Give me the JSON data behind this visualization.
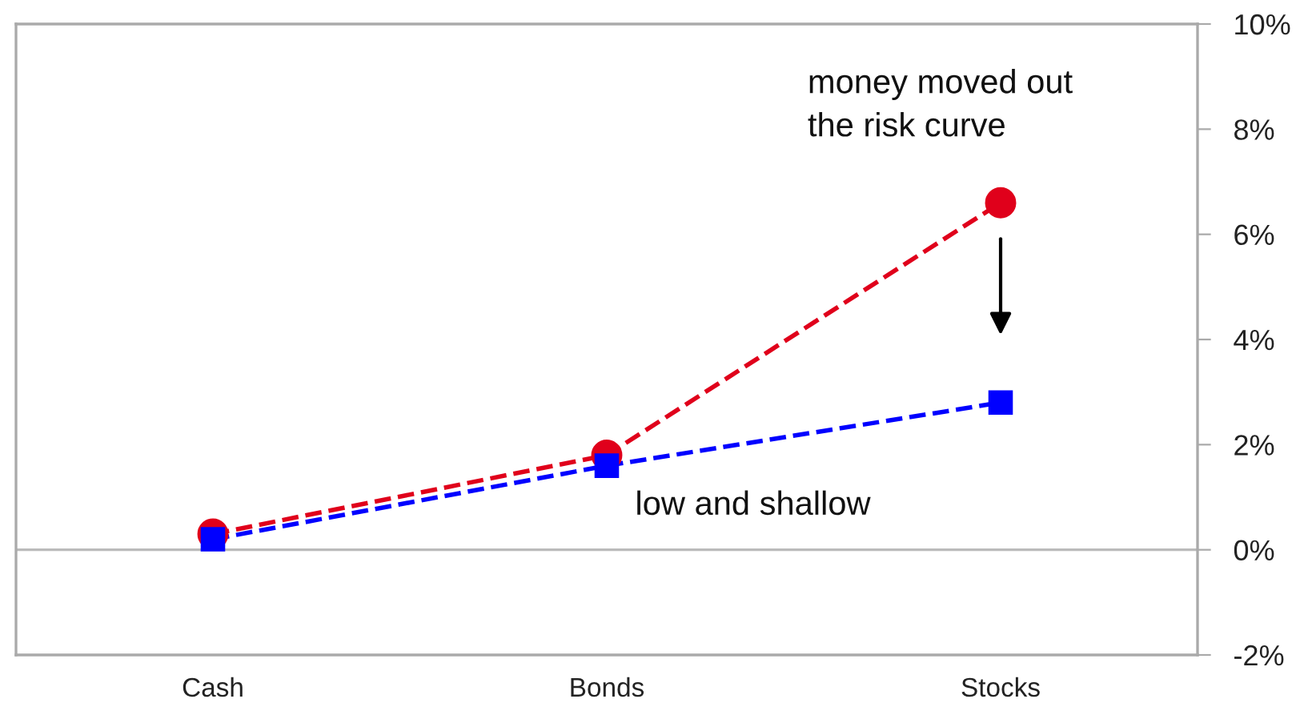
{
  "chart_data": {
    "type": "line",
    "categories": [
      "Cash",
      "Bonds",
      "Stocks"
    ],
    "series": [
      {
        "color": "#e0001b",
        "marker": "circle",
        "line_style": "dashed",
        "values": [
          0.3,
          1.8,
          6.6
        ]
      },
      {
        "color": "#0000ff",
        "marker": "square",
        "line_style": "dashed",
        "values": [
          0.2,
          1.6,
          2.8
        ]
      }
    ],
    "ylim": [
      -2,
      10
    ],
    "yticks": [
      {
        "value": -2,
        "label": "-2%"
      },
      {
        "value": 0,
        "label": "0%"
      },
      {
        "value": 2,
        "label": "2%"
      },
      {
        "value": 4,
        "label": "4%"
      },
      {
        "value": 6,
        "label": "6%"
      },
      {
        "value": 8,
        "label": "8%"
      },
      {
        "value": 10,
        "label": "10%"
      }
    ],
    "ref_lines": [
      {
        "axis": "y",
        "value": 0,
        "color": "#bbbbbb"
      }
    ],
    "annotations": [
      "money moved out\nthe risk curve",
      "low and shallow"
    ],
    "grid": false,
    "legend": false
  }
}
